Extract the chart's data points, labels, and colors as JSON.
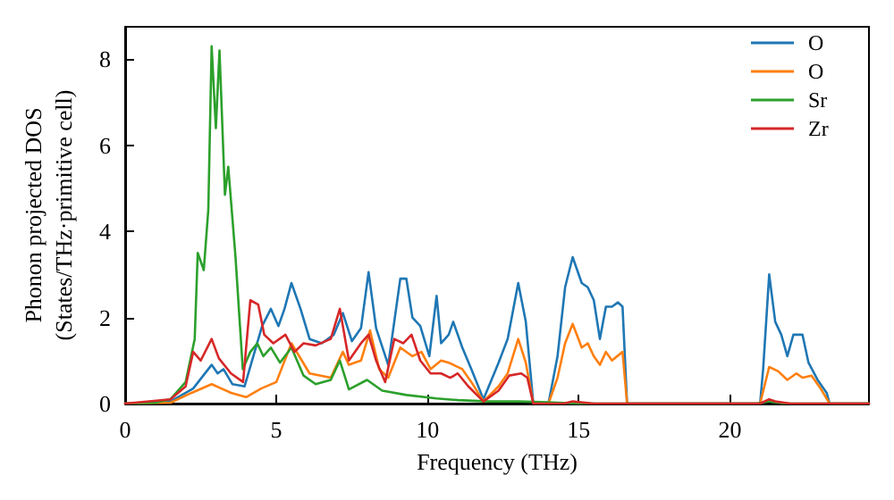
{
  "chart_data": {
    "type": "line",
    "xlabel": "Frequency (THz)",
    "ylabel": "Phonon projected DOS\n(States/THz·primitive cell)",
    "xlim": [
      0,
      24.6
    ],
    "ylim": [
      0,
      8.75
    ],
    "xticks": [
      0,
      5,
      10,
      15,
      20
    ],
    "yticks": [
      0,
      2,
      4,
      6,
      8
    ],
    "grid": false,
    "legend": "top right",
    "marker": "none",
    "line_style": "solid",
    "series": [
      {
        "name": "O",
        "color": "#1f77b4",
        "x": [
          0,
          1.5,
          2.25,
          2.86,
          3.06,
          3.25,
          3.55,
          3.95,
          4.24,
          4.53,
          4.82,
          5.07,
          5.27,
          5.5,
          5.8,
          6.1,
          6.5,
          6.9,
          7.2,
          7.5,
          7.8,
          8.05,
          8.3,
          8.7,
          9.1,
          9.3,
          9.5,
          9.76,
          10.06,
          10.3,
          10.45,
          10.7,
          10.85,
          11.15,
          11.45,
          11.85,
          12.35,
          12.65,
          13.0,
          13.25,
          13.5,
          14.0,
          14.3,
          14.55,
          14.8,
          15.1,
          15.3,
          15.5,
          15.7,
          15.9,
          16.1,
          16.3,
          16.45,
          16.6,
          21.0,
          21.1,
          21.3,
          21.5,
          21.7,
          21.9,
          22.1,
          22.4,
          22.6,
          22.9,
          23.2,
          23.3,
          24.6
        ],
        "values": [
          0,
          0.05,
          0.35,
          0.9,
          0.7,
          0.8,
          0.45,
          0.4,
          1.1,
          1.8,
          2.2,
          1.8,
          2.2,
          2.8,
          2.2,
          1.5,
          1.4,
          1.6,
          2.1,
          1.45,
          1.75,
          3.05,
          1.75,
          0.9,
          2.9,
          2.9,
          2.0,
          1.8,
          1.1,
          2.5,
          1.4,
          1.6,
          1.9,
          1.3,
          0.8,
          0.1,
          0.95,
          1.5,
          2.8,
          1.9,
          0,
          0,
          1.1,
          2.7,
          3.4,
          2.8,
          2.7,
          2.4,
          1.5,
          2.25,
          2.25,
          2.35,
          2.25,
          0,
          0,
          0.8,
          3.0,
          1.9,
          1.6,
          1.1,
          1.6,
          1.6,
          0.95,
          0.55,
          0.25,
          0,
          0
        ]
      },
      {
        "name": "O",
        "color": "#ff7f0e",
        "x": [
          0,
          1.5,
          2.2,
          2.86,
          3.5,
          4.0,
          4.5,
          5.0,
          5.5,
          6.1,
          6.8,
          7.2,
          7.4,
          7.8,
          8.1,
          8.4,
          8.7,
          9.1,
          9.5,
          9.8,
          10.1,
          10.45,
          10.7,
          11.15,
          11.45,
          11.85,
          12.35,
          12.65,
          13.0,
          13.25,
          13.5,
          14.0,
          14.3,
          14.55,
          14.8,
          15.1,
          15.3,
          15.5,
          15.7,
          15.9,
          16.1,
          16.45,
          16.6,
          21.0,
          21.3,
          21.6,
          21.9,
          22.2,
          22.4,
          22.7,
          23.0,
          23.3,
          24.6
        ],
        "values": [
          0,
          0.02,
          0.25,
          0.45,
          0.25,
          0.15,
          0.35,
          0.5,
          1.4,
          0.7,
          0.6,
          1.2,
          0.9,
          1.0,
          1.7,
          0.8,
          0.6,
          1.3,
          1.1,
          1.2,
          0.8,
          1.0,
          0.95,
          0.8,
          0.5,
          0.05,
          0.4,
          0.7,
          1.5,
          0.95,
          0,
          0,
          0.6,
          1.4,
          1.85,
          1.3,
          1.4,
          1.1,
          0.9,
          1.2,
          1.0,
          1.2,
          0,
          0,
          0.85,
          0.75,
          0.55,
          0.7,
          0.6,
          0.65,
          0.35,
          0,
          0
        ]
      },
      {
        "name": "Sr",
        "color": "#2ca02c",
        "x": [
          0,
          1.0,
          1.5,
          2.0,
          2.3,
          2.4,
          2.6,
          2.75,
          2.86,
          3.0,
          3.12,
          3.3,
          3.41,
          3.65,
          3.89,
          4.14,
          4.37,
          4.57,
          4.82,
          5.12,
          5.5,
          5.9,
          6.3,
          6.8,
          7.1,
          7.4,
          8.0,
          8.5,
          9.3,
          10.3,
          11.0,
          12.0,
          13.0,
          14.0,
          15.0,
          20.9,
          21.3,
          21.8,
          24.6
        ],
        "values": [
          0,
          0.02,
          0.1,
          0.5,
          1.5,
          3.5,
          3.1,
          4.5,
          8.3,
          6.4,
          8.2,
          4.85,
          5.5,
          3.4,
          0.8,
          1.2,
          1.4,
          1.1,
          1.3,
          0.95,
          1.3,
          0.65,
          0.45,
          0.55,
          1.0,
          0.33,
          0.55,
          0.3,
          0.2,
          0.12,
          0.08,
          0.05,
          0.05,
          0.03,
          0,
          0,
          0.05,
          0,
          0
        ]
      },
      {
        "name": "Zr",
        "color": "#d62728",
        "x": [
          0,
          1.5,
          2.0,
          2.25,
          2.5,
          2.86,
          3.1,
          3.5,
          3.9,
          4.14,
          4.4,
          4.6,
          4.9,
          5.3,
          5.6,
          5.9,
          6.3,
          6.8,
          7.1,
          7.4,
          7.8,
          8.05,
          8.3,
          8.6,
          8.9,
          9.2,
          9.47,
          9.76,
          10.1,
          10.45,
          10.75,
          11.0,
          11.35,
          11.85,
          12.35,
          12.7,
          13.1,
          13.3,
          13.5,
          14.5,
          14.8,
          15.5,
          21.0,
          21.3,
          21.5,
          22.0,
          24.6
        ],
        "values": [
          0,
          0.1,
          0.4,
          1.2,
          1.0,
          1.5,
          1.05,
          0.7,
          0.5,
          2.4,
          2.3,
          1.6,
          1.4,
          1.6,
          1.2,
          1.4,
          1.35,
          1.5,
          2.2,
          1.0,
          1.4,
          1.6,
          1.0,
          0.5,
          1.5,
          1.4,
          1.6,
          1.0,
          0.7,
          0.7,
          0.6,
          0.7,
          0.4,
          0.05,
          0.3,
          0.65,
          0.7,
          0.6,
          0,
          0,
          0.05,
          0,
          0,
          0.1,
          0.05,
          0,
          0
        ]
      }
    ]
  }
}
